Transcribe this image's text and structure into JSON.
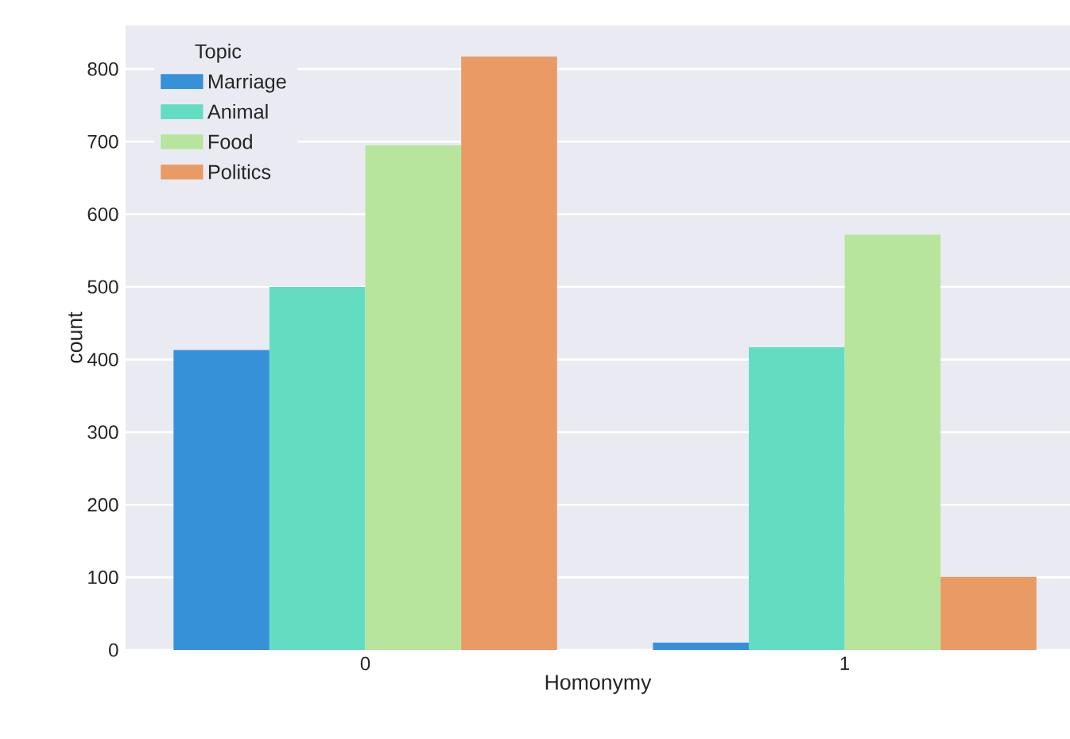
{
  "chart_data": {
    "type": "bar",
    "xlabel": "Homonymy",
    "ylabel": "count",
    "legend_title": "Topic",
    "categories": [
      "0",
      "1"
    ],
    "series": [
      {
        "name": "Marriage",
        "color": "#3791d8",
        "values": [
          413,
          10
        ]
      },
      {
        "name": "Animal",
        "color": "#63ddc2",
        "values": [
          500,
          417
        ]
      },
      {
        "name": "Food",
        "color": "#b7e59e",
        "values": [
          695,
          572
        ]
      },
      {
        "name": "Politics",
        "color": "#e99a65",
        "values": [
          817,
          101
        ]
      }
    ],
    "ylim": [
      0,
      860
    ],
    "yticks": [
      0,
      100,
      200,
      300,
      400,
      500,
      600,
      700,
      800
    ],
    "grid": "y",
    "legend": "top left"
  }
}
